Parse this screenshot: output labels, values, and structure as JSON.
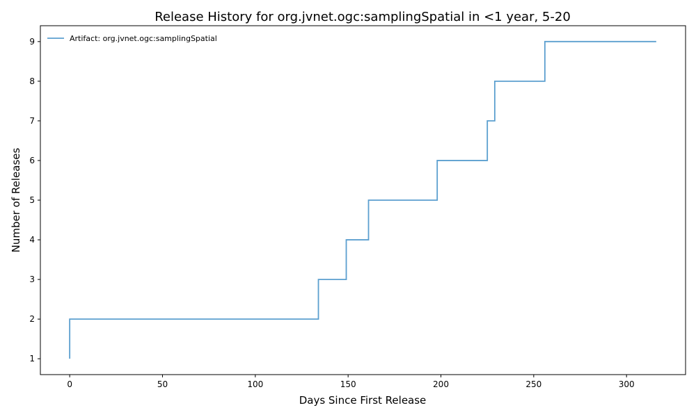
{
  "chart_data": {
    "type": "line",
    "step": "post",
    "title": "Release History for org.jvnet.ogc:samplingSpatial in <1 year, 5-20",
    "xlabel": "Days Since First Release",
    "ylabel": "Number of Releases",
    "xlim": [
      -15.8,
      331.8
    ],
    "ylim": [
      0.6,
      9.4
    ],
    "xticks": [
      0,
      50,
      100,
      150,
      200,
      250,
      300
    ],
    "yticks": [
      1,
      2,
      3,
      4,
      5,
      6,
      7,
      8,
      9
    ],
    "legend_position": "top-left",
    "grid": false,
    "series": [
      {
        "name": "Artifact: org.jvnet.ogc:samplingSpatial",
        "color": "#5b9fcf",
        "x": [
          0,
          0,
          134,
          149,
          161,
          198,
          225,
          229,
          256,
          316
        ],
        "y": [
          1,
          2,
          3,
          4,
          5,
          6,
          7,
          8,
          9,
          9
        ]
      }
    ]
  }
}
